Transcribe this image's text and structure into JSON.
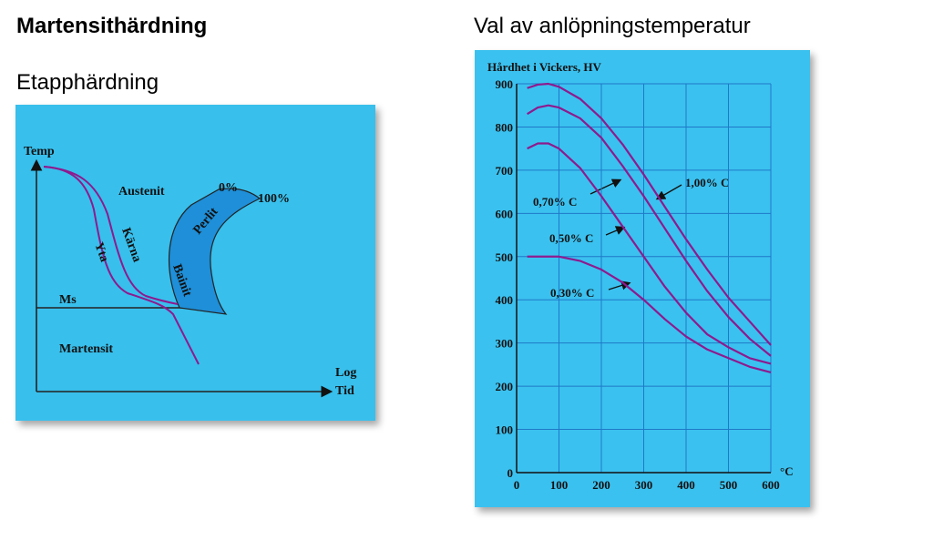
{
  "header": {
    "title": "Martensithärdning",
    "subtitle": "Etapphärdning"
  },
  "diagram": {
    "y_axis": "Temp",
    "x_axis_top": "Log",
    "x_axis_bottom": "Tid",
    "austenite": "Austenit",
    "martensite": "Martensit",
    "ms": "Ms",
    "pearlite_start": "0%",
    "pearlite_end": "100%",
    "pearlite": "Perlit",
    "bainite": "Bainit",
    "surface": "Yta",
    "core": "Kärna"
  },
  "chart_data": {
    "type": "line",
    "title": "Val av anlöpningstemperatur",
    "y_label": "Hårdhet i Vickers, HV",
    "x_label": "°C",
    "x": [
      25,
      50,
      75,
      100,
      150,
      200,
      250,
      300,
      350,
      400,
      450,
      500,
      550,
      600
    ],
    "series": [
      {
        "name": "1,00% C",
        "color": "#8e1a8e",
        "values": [
          890,
          898,
          900,
          893,
          865,
          820,
          760,
          690,
          615,
          540,
          470,
          405,
          350,
          295
        ]
      },
      {
        "name": "0,70% C",
        "color": "#8e1a8e",
        "values": [
          830,
          845,
          850,
          845,
          820,
          775,
          710,
          640,
          565,
          490,
          420,
          360,
          310,
          270
        ]
      },
      {
        "name": "0,50% C",
        "color": "#8e1a8e",
        "values": [
          750,
          762,
          762,
          750,
          705,
          640,
          570,
          500,
          430,
          370,
          320,
          290,
          265,
          252
        ]
      },
      {
        "name": "0,30% C",
        "color": "#8e1a8e",
        "values": [
          500,
          500,
          500,
          500,
          490,
          470,
          440,
          400,
          355,
          315,
          285,
          265,
          245,
          232
        ]
      }
    ],
    "xlim": [
      0,
      600
    ],
    "ylim": [
      0,
      900
    ],
    "xticks": [
      0,
      100,
      200,
      300,
      400,
      500,
      600
    ],
    "yticks": [
      0,
      100,
      200,
      300,
      400,
      500,
      600,
      700,
      800,
      900
    ],
    "grid": true
  }
}
